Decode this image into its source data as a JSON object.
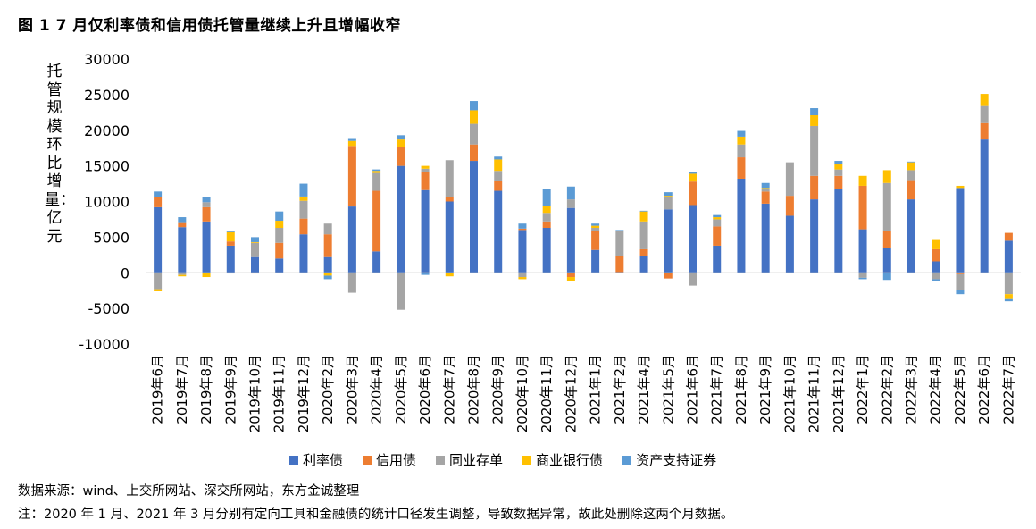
{
  "title": "图 1 7 月仅利率债和信用债托管量继续上升且增幅收窄",
  "ylabel": "托管规模环比增量：亿元",
  "source": "数据来源：wind、上交所网站、深交所网站，东方金诚整理",
  "note": "注：2020 年 1 月、2021 年 3 月分别有定向工具和金融债的统计口径发生调整，导致数据异常，故此处删除这两个月数据。",
  "colors": {
    "利率债": "#4472C4",
    "信用债": "#ED7D31",
    "同业存单": "#A5A5A5",
    "商业银行债": "#FFC000",
    "资产支持证券": "#5B9BD5"
  },
  "chart_data": {
    "type": "bar",
    "stacked": true,
    "ylim": [
      -10000,
      30000
    ],
    "yticks": [
      -10000,
      -5000,
      0,
      5000,
      10000,
      15000,
      20000,
      25000,
      30000
    ],
    "legend_position": "bottom",
    "grid": false,
    "categories": [
      "2019年6月",
      "2019年7月",
      "2019年8月",
      "2019年9月",
      "2019年10月",
      "2019年11月",
      "2019年12月",
      "2020年2月",
      "2020年3月",
      "2020年4月",
      "2020年5月",
      "2020年6月",
      "2020年7月",
      "2020年8月",
      "2020年9月",
      "2020年10月",
      "2020年11月",
      "2020年12月",
      "2021年1月",
      "2021年2月",
      "2021年4月",
      "2021年5月",
      "2021年6月",
      "2021年7月",
      "2021年8月",
      "2021年9月",
      "2021年10月",
      "2021年11月",
      "2021年12月",
      "2022年1月",
      "2022年2月",
      "2022年3月",
      "2022年4月",
      "2022年5月",
      "2022年6月",
      "2022年7月"
    ],
    "series": [
      {
        "name": "利率债",
        "values": [
          9200,
          6400,
          7200,
          3800,
          2200,
          2000,
          5400,
          2200,
          9300,
          3000,
          15000,
          11600,
          10000,
          15700,
          11500,
          6000,
          6300,
          9100,
          3200,
          100,
          2400,
          8900,
          9500,
          3800,
          13200,
          9700,
          8000,
          10300,
          11800,
          6100,
          3500,
          10300,
          1600,
          11900,
          18700,
          4500
        ]
      },
      {
        "name": "信用债",
        "values": [
          1400,
          700,
          2000,
          600,
          -100,
          2200,
          2200,
          3200,
          8500,
          8500,
          2700,
          2600,
          600,
          2300,
          1400,
          200,
          900,
          -600,
          2600,
          2200,
          900,
          -800,
          3300,
          2700,
          3000,
          1700,
          2800,
          3300,
          1800,
          6100,
          2300,
          2700,
          1700,
          -200,
          2300,
          1100
        ]
      },
      {
        "name": "同业存单",
        "values": [
          -2300,
          -300,
          700,
          -100,
          2000,
          2100,
          2500,
          1500,
          -2800,
          2500,
          -5200,
          400,
          5200,
          2900,
          1400,
          -600,
          1200,
          1200,
          500,
          3500,
          3900,
          1700,
          -1800,
          1000,
          1800,
          300,
          4700,
          7000,
          900,
          -700,
          6800,
          1400,
          -900,
          -2200,
          2400,
          -3000
        ]
      },
      {
        "name": "商业银行债",
        "values": [
          -300,
          -200,
          -600,
          1300,
          100,
          1000,
          600,
          -400,
          700,
          300,
          1000,
          400,
          -500,
          1900,
          1600,
          -300,
          1000,
          -500,
          300,
          100,
          1400,
          200,
          1100,
          300,
          1100,
          200,
          0,
          1500,
          800,
          1400,
          1800,
          1100,
          1300,
          300,
          1700,
          -700
        ]
      },
      {
        "name": "资产支持证券",
        "values": [
          800,
          700,
          700,
          100,
          700,
          1300,
          1800,
          -500,
          400,
          200,
          600,
          -300,
          0,
          1300,
          400,
          700,
          2300,
          1800,
          300,
          100,
          100,
          500,
          200,
          300,
          800,
          700,
          0,
          1000,
          400,
          -200,
          -1000,
          100,
          -300,
          -600,
          0,
          -300
        ]
      }
    ]
  }
}
